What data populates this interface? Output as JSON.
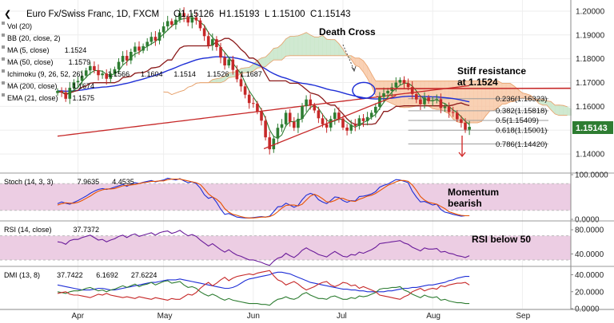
{
  "header": {
    "title": "Euro Fx/Swiss Franc, 1D, FXCM",
    "ohlc": [
      {
        "key": "O",
        "value": "1.15126"
      },
      {
        "key": "H",
        "value": "1.15193"
      },
      {
        "key": "L",
        "value": "1.15100"
      },
      {
        "key": "C",
        "value": "1.15143"
      }
    ]
  },
  "legend": [
    {
      "name": "Vol (20)",
      "values": []
    },
    {
      "name": "BB (20, close, 2)",
      "values": []
    },
    {
      "name": "MA (5, close)",
      "values": [
        "1.1524"
      ],
      "colors": [
        "#2e7d32"
      ]
    },
    {
      "name": "MA (50, close)",
      "values": [
        "1.1579"
      ],
      "colors": [
        "#1f2fd6"
      ]
    },
    {
      "name": "Ichimoku (9, 26, 52, 26)",
      "values": [
        "1.1566",
        "1.1604",
        "1.1514",
        "1.1526",
        "1.1687"
      ],
      "colors": [
        "#1f2fd6",
        "#8b1a1a",
        "#2e7d32",
        "#2e7d32",
        "#c62828"
      ]
    },
    {
      "name": "MA (200, close)",
      "values": [
        "1.1674"
      ],
      "colors": [
        "#c62828"
      ]
    },
    {
      "name": "EMA (21, close)",
      "values": [
        "1.1575"
      ],
      "colors": [
        "#1f2fd6"
      ]
    }
  ],
  "annotations": {
    "death_cross": "Death Cross",
    "stiff_resistance_1": "Stiff resistance",
    "stiff_resistance_2": "at 1.1524",
    "momentum_1": "Momentum",
    "momentum_2": "bearish",
    "rsi_note": "RSI below 50"
  },
  "price_label": "1.15143",
  "fib_levels": [
    {
      "label": "0.236(1.16323)",
      "price": 1.16323
    },
    {
      "label": "0.382(1.15818)",
      "price": 1.15818
    },
    {
      "label": "0.5(1.15409)",
      "price": 1.15409
    },
    {
      "label": "0.618(1.15001)",
      "price": 1.15001
    },
    {
      "label": "0.786(1.14420)",
      "price": 1.1442
    }
  ],
  "panels": {
    "stoch": {
      "label": "Stoch (14, 3, 3)",
      "values": [
        "7.9635",
        "4.4535"
      ],
      "colors": [
        "#1f2fd6",
        "#e65100"
      ]
    },
    "rsi": {
      "label": "RSI (14, close)",
      "values": [
        "37.7372"
      ],
      "colors": [
        "#6a1b9a"
      ]
    },
    "dmi": {
      "label": "DMI (13, 8)",
      "values": [
        "37.7422",
        "6.1692",
        "27.6224"
      ],
      "colors": [
        "#1f2fd6",
        "#2e7d32",
        "#c62828"
      ]
    }
  },
  "x_axis_labels": [
    "Apr",
    "May",
    "Jun",
    "Jul",
    "Aug",
    "Sep"
  ],
  "colors": {
    "bull": "#2e7d32",
    "bear": "#c62828",
    "cloud_bull": "#c8e6c9",
    "cloud_bear": "#f8c9a8",
    "indicator_band": "#eccde3",
    "price_tag": "#2e7d32"
  },
  "chart_data": [
    {
      "type": "candlestick",
      "title": "Euro Fx/Swiss Franc, 1D, FXCM",
      "x_labels": [
        "Apr",
        "May",
        "Jun",
        "Jul",
        "Aug",
        "Sep"
      ],
      "y_ticks": [
        "1.14000",
        "1.15000",
        "1.16000",
        "1.17000",
        "1.18000",
        "1.19000",
        "1.20000"
      ],
      "ylim": [
        1.133,
        1.204
      ],
      "close": [
        1.1665,
        1.1659,
        1.1632,
        1.1678,
        1.1701,
        1.1707,
        1.1729,
        1.1751,
        1.1769,
        1.1752,
        1.1731,
        1.1738,
        1.1716,
        1.1738,
        1.1756,
        1.1787,
        1.1812,
        1.1793,
        1.1829,
        1.1851,
        1.1834,
        1.1853,
        1.1871,
        1.1892,
        1.1876,
        1.1911,
        1.1936,
        1.1958,
        1.1943,
        1.1964,
        1.1992,
        1.1976,
        1.1952,
        1.1974,
        1.1961,
        1.1928,
        1.1895,
        1.1856,
        1.1882,
        1.1849,
        1.1805,
        1.1772,
        1.1797,
        1.1753,
        1.1714,
        1.1684,
        1.1649,
        1.1614,
        1.1612,
        1.1578,
        1.154,
        1.147,
        1.142,
        1.1465,
        1.151,
        1.1525,
        1.1573,
        1.1535,
        1.151,
        1.1548,
        1.1601,
        1.1629,
        1.1604,
        1.1583,
        1.155,
        1.1525,
        1.1511,
        1.1547,
        1.1574,
        1.1549,
        1.1511,
        1.1498,
        1.1523,
        1.1518,
        1.155,
        1.1538,
        1.1555,
        1.1573,
        1.1598,
        1.164,
        1.1655,
        1.1665,
        1.168,
        1.17,
        1.1711,
        1.1697,
        1.1681,
        1.1652,
        1.1629,
        1.1609,
        1.1637,
        1.1622,
        1.1626,
        1.163,
        1.1593,
        1.1599,
        1.1576,
        1.1573,
        1.1546,
        1.1531,
        1.1502,
        1.1514
      ]
    },
    {
      "type": "line",
      "title": "Stoch (14, 3, 3)",
      "y_ticks": [
        "0.0000",
        "100.0000"
      ],
      "ylim": [
        0,
        100
      ],
      "series": [
        {
          "name": "%K",
          "values": [
            35,
            39,
            36,
            34,
            38,
            42,
            47,
            52,
            58,
            63,
            67,
            69,
            67,
            69,
            72,
            75,
            78,
            74,
            79,
            82,
            80,
            83,
            85,
            87,
            84,
            86,
            88,
            92,
            90,
            88,
            91,
            86,
            82,
            84,
            80,
            70,
            55,
            47,
            50,
            38,
            23,
            11,
            13,
            9,
            5,
            4,
            3,
            3,
            4,
            5,
            6,
            5,
            7,
            17,
            28,
            29,
            36,
            32,
            27,
            31,
            44,
            54,
            58,
            55,
            44,
            39,
            35,
            42,
            50,
            49,
            42,
            38,
            42,
            41,
            51,
            52,
            54,
            57,
            62,
            72,
            76,
            79,
            84,
            89,
            88,
            85,
            82,
            63,
            50,
            39,
            40,
            36,
            32,
            34,
            22,
            16,
            14,
            11,
            9,
            7,
            8,
            8
          ]
        },
        {
          "name": "%D",
          "values": [
            32,
            35,
            37,
            36,
            36,
            38,
            42,
            47,
            52,
            58,
            63,
            66,
            68,
            68,
            69,
            72,
            75,
            76,
            77,
            78,
            80,
            82,
            83,
            85,
            85,
            86,
            86,
            89,
            90,
            90,
            90,
            88,
            86,
            84,
            82,
            78,
            68,
            57,
            50,
            45,
            37,
            24,
            16,
            11,
            9,
            6,
            4,
            3,
            3,
            4,
            5,
            5,
            6,
            10,
            17,
            25,
            31,
            32,
            32,
            30,
            34,
            43,
            52,
            56,
            52,
            46,
            39,
            39,
            42,
            47,
            47,
            43,
            41,
            40,
            45,
            48,
            52,
            54,
            58,
            64,
            70,
            76,
            80,
            84,
            87,
            87,
            85,
            77,
            65,
            51,
            43,
            38,
            36,
            34,
            29,
            24,
            17,
            14,
            11,
            9,
            8,
            8
          ]
        }
      ]
    },
    {
      "type": "line",
      "title": "RSI (14, close)",
      "y_ticks": [
        "40.0000",
        "80.0000"
      ],
      "ylim": [
        22,
        92
      ],
      "series": [
        {
          "name": "RSI",
          "values": [
            60,
            59,
            56,
            62,
            64,
            64,
            67,
            69,
            71,
            67,
            63,
            64,
            60,
            63,
            65,
            69,
            71,
            67,
            71,
            73,
            69,
            71,
            73,
            75,
            71,
            75,
            77,
            78,
            74,
            76,
            79,
            74,
            70,
            72,
            69,
            63,
            58,
            53,
            57,
            52,
            47,
            43,
            47,
            42,
            38,
            36,
            33,
            30,
            30,
            28,
            26,
            23,
            21,
            28,
            33,
            35,
            41,
            37,
            34,
            39,
            46,
            50,
            46,
            43,
            39,
            37,
            35,
            40,
            44,
            40,
            36,
            35,
            39,
            38,
            43,
            41,
            44,
            47,
            51,
            57,
            58,
            59,
            60,
            61,
            62,
            58,
            56,
            51,
            48,
            45,
            50,
            48,
            48,
            49,
            43,
            44,
            41,
            40,
            37,
            36,
            34,
            37
          ]
        }
      ]
    },
    {
      "type": "line",
      "title": "DMI (13, 8)",
      "y_ticks": [
        "0.0000",
        "20.0000",
        "40.0000"
      ],
      "ylim": [
        0,
        48
      ],
      "series": [
        {
          "name": "ADX",
          "values": [
            28,
            27,
            26,
            25,
            24,
            23,
            22,
            22,
            22,
            23,
            24,
            24,
            23,
            22,
            22,
            23,
            24,
            25,
            26,
            27,
            28,
            29,
            30,
            31,
            31,
            32,
            33,
            34,
            34,
            34,
            35,
            34,
            33,
            32,
            31,
            30,
            29,
            28,
            27,
            26,
            25,
            24,
            24,
            25,
            27,
            30,
            33,
            35,
            36,
            37,
            38,
            39,
            40,
            42,
            43,
            43,
            42,
            41,
            39,
            37,
            35,
            33,
            31,
            30,
            29,
            28,
            27,
            26,
            25,
            24,
            23,
            23,
            22,
            22,
            21,
            21,
            20,
            20,
            20,
            20,
            20,
            21,
            21,
            22,
            23,
            24,
            24,
            25,
            25,
            26,
            27,
            28,
            28,
            29,
            30,
            31,
            33,
            34,
            36,
            37,
            38,
            38
          ]
        },
        {
          "name": "+DI",
          "values": [
            20,
            19,
            18,
            20,
            21,
            21,
            22,
            24,
            25,
            23,
            21,
            22,
            20,
            22,
            23,
            25,
            27,
            25,
            27,
            29,
            26,
            28,
            29,
            31,
            28,
            30,
            32,
            33,
            30,
            31,
            32,
            28,
            25,
            26,
            24,
            20,
            17,
            15,
            17,
            15,
            12,
            10,
            12,
            10,
            9,
            8,
            7,
            6,
            6,
            6,
            5,
            5,
            4,
            8,
            11,
            12,
            14,
            12,
            11,
            13,
            17,
            19,
            16,
            14,
            12,
            12,
            11,
            14,
            15,
            13,
            11,
            11,
            13,
            12,
            15,
            14,
            15,
            17,
            19,
            23,
            24,
            24,
            25,
            25,
            26,
            22,
            20,
            17,
            15,
            13,
            16,
            14,
            13,
            14,
            10,
            11,
            9,
            8,
            7,
            7,
            6,
            6
          ]
        },
        {
          "name": "-DI",
          "values": [
            18,
            19,
            20,
            17,
            16,
            16,
            15,
            14,
            13,
            15,
            17,
            16,
            18,
            16,
            15,
            14,
            13,
            14,
            13,
            12,
            14,
            13,
            12,
            11,
            13,
            12,
            11,
            10,
            12,
            11,
            11,
            14,
            17,
            16,
            19,
            24,
            28,
            31,
            27,
            30,
            34,
            37,
            33,
            36,
            38,
            39,
            40,
            41,
            40,
            42,
            43,
            44,
            45,
            39,
            34,
            32,
            28,
            30,
            32,
            29,
            25,
            22,
            24,
            26,
            29,
            31,
            32,
            28,
            26,
            28,
            31,
            30,
            27,
            28,
            24,
            26,
            24,
            22,
            20,
            16,
            15,
            14,
            13,
            12,
            11,
            14,
            16,
            20,
            22,
            24,
            21,
            23,
            24,
            23,
            27,
            26,
            28,
            29,
            30,
            30,
            31,
            28
          ]
        }
      ]
    }
  ]
}
